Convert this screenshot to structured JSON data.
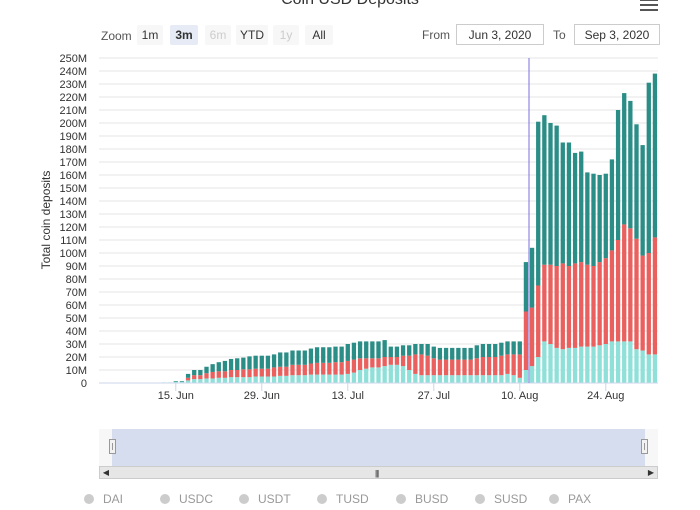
{
  "title": "Coin USD Deposits",
  "zoom": {
    "label": "Zoom",
    "buttons": [
      {
        "label": "1m",
        "state": "normal"
      },
      {
        "label": "3m",
        "state": "active"
      },
      {
        "label": "6m",
        "state": "disabled"
      },
      {
        "label": "YTD",
        "state": "normal"
      },
      {
        "label": "1y",
        "state": "disabled"
      },
      {
        "label": "All",
        "state": "normal"
      }
    ]
  },
  "range": {
    "from_label": "From",
    "from_value": "Jun 3, 2020",
    "to_label": "To",
    "to_value": "Sep 3, 2020"
  },
  "legend": {
    "row1": [
      "DAI",
      "USDC",
      "USDT",
      "TUSD",
      "BUSD",
      "SUSD",
      "PAX"
    ]
  },
  "chart_data": {
    "type": "bar",
    "stacked": true,
    "ylabel": "Total coin deposits",
    "ylim": [
      0,
      250
    ],
    "yticks": [
      "0",
      "10M",
      "20M",
      "30M",
      "40M",
      "50M",
      "60M",
      "70M",
      "80M",
      "90M",
      "100M",
      "110M",
      "120M",
      "130M",
      "140M",
      "150M",
      "160M",
      "170M",
      "180M",
      "190M",
      "200M",
      "210M",
      "220M",
      "230M",
      "240M",
      "250M"
    ],
    "xticks": [
      {
        "label": "15. Jun",
        "day": 12
      },
      {
        "label": "29. Jun",
        "day": 26
      },
      {
        "label": "13. Jul",
        "day": 40
      },
      {
        "label": "27. Jul",
        "day": 54
      },
      {
        "label": "10. Aug",
        "day": 68
      },
      {
        "label": "24. Aug",
        "day": 82
      }
    ],
    "start_date": "Jun 3, 2020",
    "crosshair_day": 70,
    "colors": {
      "light": "#8ee0d8",
      "red": "#e9605e",
      "teal": "#2a8d86"
    },
    "series_light": [
      0,
      0,
      0,
      0,
      0,
      0,
      0,
      0,
      0,
      0,
      0.5,
      0.5,
      1,
      1,
      2,
      3,
      3,
      3.5,
      3.5,
      4,
      4,
      4.5,
      4.5,
      4.5,
      4.5,
      5,
      5,
      5,
      5,
      5.5,
      5.5,
      6,
      6,
      6,
      6.5,
      6.5,
      6.5,
      6.5,
      6.5,
      6.5,
      7,
      8,
      10,
      11,
      12,
      12,
      13,
      14,
      14,
      13,
      10,
      7,
      6,
      6,
      6,
      6,
      6,
      6,
      6,
      6,
      6,
      6,
      6,
      6,
      6,
      6,
      7,
      6,
      4,
      10,
      13,
      20,
      32,
      30,
      27,
      26,
      27,
      27,
      28,
      28,
      28,
      29,
      30,
      32,
      32,
      32,
      32,
      26,
      25,
      22,
      22
    ],
    "series_red": [
      0,
      0,
      0,
      0,
      0,
      0,
      0,
      0,
      0,
      0,
      0,
      0,
      0,
      0,
      2,
      3,
      3,
      4,
      5,
      5,
      5,
      5.5,
      5.5,
      6,
      6,
      6,
      6,
      6,
      7,
      7,
      7,
      8,
      8,
      8,
      8.5,
      9,
      9,
      9,
      9.5,
      9.5,
      10,
      10,
      9,
      8,
      7,
      7,
      7,
      6,
      6,
      8,
      11,
      15,
      16,
      15,
      13,
      12,
      12,
      12,
      12,
      12,
      12,
      13,
      14,
      14,
      14,
      15,
      15,
      16,
      18,
      45,
      45,
      55,
      59,
      61,
      63,
      66,
      63,
      65,
      65,
      63,
      62,
      64,
      66,
      70,
      78,
      90,
      87,
      85,
      73,
      78,
      90
    ],
    "series_teal": [
      0,
      0,
      0,
      0,
      0,
      0,
      0,
      0,
      0,
      0,
      0,
      0,
      0.5,
      0.5,
      3,
      4,
      4,
      5,
      6,
      7,
      8,
      8.5,
      9,
      9,
      10,
      10,
      10,
      10,
      10,
      11,
      11,
      11,
      11,
      11,
      11.5,
      12,
      12,
      12,
      12,
      12,
      13,
      13,
      13,
      13,
      13,
      13,
      13,
      8,
      8,
      8,
      8,
      8,
      8,
      9,
      9,
      9,
      9,
      9,
      9,
      9,
      9,
      10,
      10,
      10,
      10,
      10,
      10,
      10,
      10,
      38,
      46,
      126,
      115,
      109,
      108,
      93,
      95,
      85,
      85,
      71,
      71,
      67,
      65,
      70,
      100,
      101,
      98,
      88,
      85,
      131,
      126
    ]
  }
}
